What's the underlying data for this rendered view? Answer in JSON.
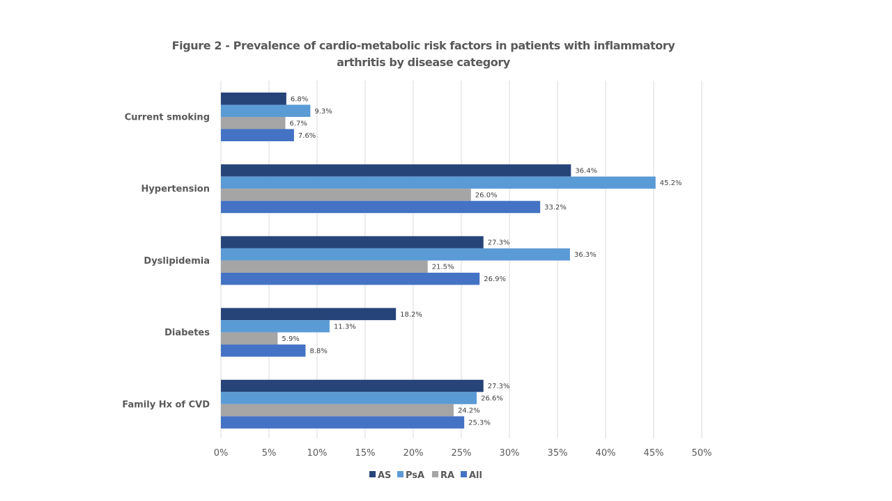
{
  "chart_data": {
    "type": "bar",
    "orientation": "horizontal",
    "title": "Figure 2 - Prevalence of cardio-metabolic risk factors in patients with inflammatory arthritis by disease category",
    "title_lines": [
      "Figure 2 - Prevalence of cardio-metabolic risk factors in patients with inflammatory",
      "arthritis by disease category"
    ],
    "xlabel": "",
    "ylabel": "",
    "xlim": [
      0,
      50
    ],
    "x_ticks": [
      0,
      5,
      10,
      15,
      20,
      25,
      30,
      35,
      40,
      45,
      50
    ],
    "x_tick_labels": [
      "0%",
      "5%",
      "10%",
      "15%",
      "20%",
      "25%",
      "30%",
      "35%",
      "40%",
      "45%",
      "50%"
    ],
    "grid": true,
    "legend_position": "bottom",
    "categories": [
      "Current smoking",
      "Hypertension",
      "Dyslipidemia",
      "Diabetes",
      "Family Hx of CVD"
    ],
    "series": [
      {
        "name": "AS",
        "color": "#264478",
        "values": [
          6.8,
          36.4,
          27.3,
          18.2,
          27.3
        ]
      },
      {
        "name": "PsA",
        "color": "#5B9BD5",
        "values": [
          9.3,
          45.2,
          36.3,
          11.3,
          26.6
        ]
      },
      {
        "name": "RA",
        "color": "#A5A5A5",
        "values": [
          6.7,
          26.0,
          21.5,
          5.9,
          24.2
        ]
      },
      {
        "name": "All",
        "color": "#4472C4",
        "values": [
          7.6,
          33.2,
          26.9,
          8.8,
          25.3
        ]
      }
    ],
    "data_label_suffix": "%"
  }
}
